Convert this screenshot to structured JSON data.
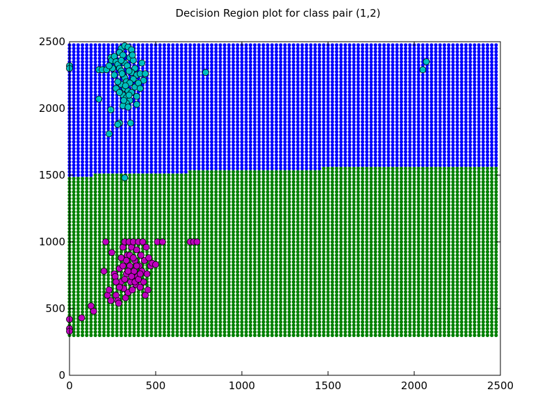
{
  "chart_data": {
    "type": "scatter",
    "title": "Decision Region plot for class pair (1,2)",
    "xlabel": "",
    "ylabel": "",
    "xlim": [
      0,
      2500
    ],
    "ylim": [
      0,
      2500
    ],
    "x_ticks": [
      0,
      500,
      1000,
      1500,
      2000,
      2500
    ],
    "y_ticks": [
      0,
      500,
      1000,
      1500,
      2000,
      2500
    ],
    "grid": false,
    "legend": "none",
    "colors": {
      "region_class_1": "#0000ff",
      "region_class_2": "#008000",
      "points_class_1": "#00bfbf",
      "points_class_2": "#bf00bf"
    },
    "decision_region": {
      "grid_x_range": [
        0,
        2475
      ],
      "grid_y_range": [
        300,
        2475
      ],
      "grid_step": 25,
      "boundary": [
        {
          "x": 0,
          "y": 1490
        },
        {
          "x": 200,
          "y": 1505
        },
        {
          "x": 800,
          "y": 1530
        },
        {
          "x": 1450,
          "y": 1550
        },
        {
          "x": 2050,
          "y": 1570
        },
        {
          "x": 2475,
          "y": 1575
        }
      ]
    },
    "series": [
      {
        "values": [
          {
            "x": 0,
            "y": 2320
          },
          {
            "x": 0,
            "y": 2300
          },
          {
            "x": 170,
            "y": 2290
          },
          {
            "x": 190,
            "y": 2290
          },
          {
            "x": 215,
            "y": 2290
          },
          {
            "x": 240,
            "y": 2380
          },
          {
            "x": 245,
            "y": 2360
          },
          {
            "x": 260,
            "y": 2390
          },
          {
            "x": 270,
            "y": 2350
          },
          {
            "x": 280,
            "y": 2330
          },
          {
            "x": 290,
            "y": 2300
          },
          {
            "x": 300,
            "y": 2280
          },
          {
            "x": 310,
            "y": 2250
          },
          {
            "x": 320,
            "y": 2230
          },
          {
            "x": 330,
            "y": 2200
          },
          {
            "x": 300,
            "y": 2180
          },
          {
            "x": 320,
            "y": 2150
          },
          {
            "x": 340,
            "y": 2130
          },
          {
            "x": 310,
            "y": 2100
          },
          {
            "x": 330,
            "y": 2080
          },
          {
            "x": 350,
            "y": 2060
          },
          {
            "x": 330,
            "y": 2040
          },
          {
            "x": 310,
            "y": 2020
          },
          {
            "x": 340,
            "y": 2010
          },
          {
            "x": 300,
            "y": 2450
          },
          {
            "x": 320,
            "y": 2470
          },
          {
            "x": 340,
            "y": 2460
          },
          {
            "x": 360,
            "y": 2440
          },
          {
            "x": 290,
            "y": 2420
          },
          {
            "x": 310,
            "y": 2400
          },
          {
            "x": 350,
            "y": 2380
          },
          {
            "x": 370,
            "y": 2360
          },
          {
            "x": 380,
            "y": 2300
          },
          {
            "x": 360,
            "y": 2270
          },
          {
            "x": 390,
            "y": 2250
          },
          {
            "x": 370,
            "y": 2220
          },
          {
            "x": 350,
            "y": 2190
          },
          {
            "x": 380,
            "y": 2160
          },
          {
            "x": 360,
            "y": 2120
          },
          {
            "x": 390,
            "y": 2090
          },
          {
            "x": 280,
            "y": 2200
          },
          {
            "x": 270,
            "y": 2150
          },
          {
            "x": 290,
            "y": 2120
          },
          {
            "x": 260,
            "y": 2250
          },
          {
            "x": 250,
            "y": 2300
          },
          {
            "x": 230,
            "y": 2320
          },
          {
            "x": 420,
            "y": 2340
          },
          {
            "x": 410,
            "y": 2260
          },
          {
            "x": 440,
            "y": 2260
          },
          {
            "x": 430,
            "y": 2210
          },
          {
            "x": 400,
            "y": 2190
          },
          {
            "x": 410,
            "y": 2150
          },
          {
            "x": 390,
            "y": 2030
          },
          {
            "x": 170,
            "y": 2070
          },
          {
            "x": 240,
            "y": 1990
          },
          {
            "x": 290,
            "y": 1890
          },
          {
            "x": 280,
            "y": 1880
          },
          {
            "x": 355,
            "y": 1890
          },
          {
            "x": 230,
            "y": 1810
          },
          {
            "x": 320,
            "y": 1480
          },
          {
            "x": 790,
            "y": 2270
          },
          {
            "x": 2050,
            "y": 2290
          },
          {
            "x": 2070,
            "y": 2350
          },
          {
            "x": 320,
            "y": 2340
          },
          {
            "x": 335,
            "y": 2320
          },
          {
            "x": 345,
            "y": 2280
          },
          {
            "x": 305,
            "y": 2260
          },
          {
            "x": 325,
            "y": 2170
          },
          {
            "x": 315,
            "y": 2060
          },
          {
            "x": 345,
            "y": 2100
          },
          {
            "x": 365,
            "y": 2400
          },
          {
            "x": 300,
            "y": 2360
          }
        ]
      },
      {
        "values": [
          {
            "x": 0,
            "y": 420
          },
          {
            "x": 0,
            "y": 350
          },
          {
            "x": 0,
            "y": 330
          },
          {
            "x": 70,
            "y": 430
          },
          {
            "x": 125,
            "y": 520
          },
          {
            "x": 140,
            "y": 480
          },
          {
            "x": 200,
            "y": 780
          },
          {
            "x": 210,
            "y": 1000
          },
          {
            "x": 220,
            "y": 600
          },
          {
            "x": 230,
            "y": 640
          },
          {
            "x": 240,
            "y": 560
          },
          {
            "x": 245,
            "y": 920
          },
          {
            "x": 260,
            "y": 760
          },
          {
            "x": 265,
            "y": 740
          },
          {
            "x": 270,
            "y": 600
          },
          {
            "x": 280,
            "y": 560
          },
          {
            "x": 285,
            "y": 540
          },
          {
            "x": 290,
            "y": 800
          },
          {
            "x": 300,
            "y": 700
          },
          {
            "x": 300,
            "y": 880
          },
          {
            "x": 310,
            "y": 960
          },
          {
            "x": 315,
            "y": 650
          },
          {
            "x": 320,
            "y": 1000
          },
          {
            "x": 325,
            "y": 580
          },
          {
            "x": 330,
            "y": 760
          },
          {
            "x": 335,
            "y": 900
          },
          {
            "x": 340,
            "y": 620
          },
          {
            "x": 345,
            "y": 1000
          },
          {
            "x": 350,
            "y": 820
          },
          {
            "x": 355,
            "y": 700
          },
          {
            "x": 360,
            "y": 960
          },
          {
            "x": 365,
            "y": 640
          },
          {
            "x": 370,
            "y": 1000
          },
          {
            "x": 375,
            "y": 780
          },
          {
            "x": 380,
            "y": 860
          },
          {
            "x": 385,
            "y": 680
          },
          {
            "x": 390,
            "y": 940
          },
          {
            "x": 395,
            "y": 740
          },
          {
            "x": 400,
            "y": 1000
          },
          {
            "x": 405,
            "y": 820
          },
          {
            "x": 410,
            "y": 660
          },
          {
            "x": 415,
            "y": 900
          },
          {
            "x": 420,
            "y": 780
          },
          {
            "x": 425,
            "y": 1000
          },
          {
            "x": 430,
            "y": 700
          },
          {
            "x": 435,
            "y": 860
          },
          {
            "x": 440,
            "y": 600
          },
          {
            "x": 445,
            "y": 960
          },
          {
            "x": 450,
            "y": 760
          },
          {
            "x": 455,
            "y": 640
          },
          {
            "x": 460,
            "y": 880
          },
          {
            "x": 470,
            "y": 820
          },
          {
            "x": 480,
            "y": 840
          },
          {
            "x": 500,
            "y": 830
          },
          {
            "x": 510,
            "y": 1000
          },
          {
            "x": 540,
            "y": 1000
          },
          {
            "x": 700,
            "y": 1000
          },
          {
            "x": 720,
            "y": 1000
          },
          {
            "x": 740,
            "y": 1000
          },
          {
            "x": 320,
            "y": 720
          },
          {
            "x": 340,
            "y": 780
          },
          {
            "x": 360,
            "y": 740
          },
          {
            "x": 380,
            "y": 700
          },
          {
            "x": 400,
            "y": 720
          },
          {
            "x": 310,
            "y": 820
          },
          {
            "x": 330,
            "y": 860
          },
          {
            "x": 350,
            "y": 900
          },
          {
            "x": 370,
            "y": 880
          },
          {
            "x": 390,
            "y": 820
          },
          {
            "x": 410,
            "y": 760
          },
          {
            "x": 290,
            "y": 660
          },
          {
            "x": 270,
            "y": 700
          }
        ]
      }
    ]
  }
}
